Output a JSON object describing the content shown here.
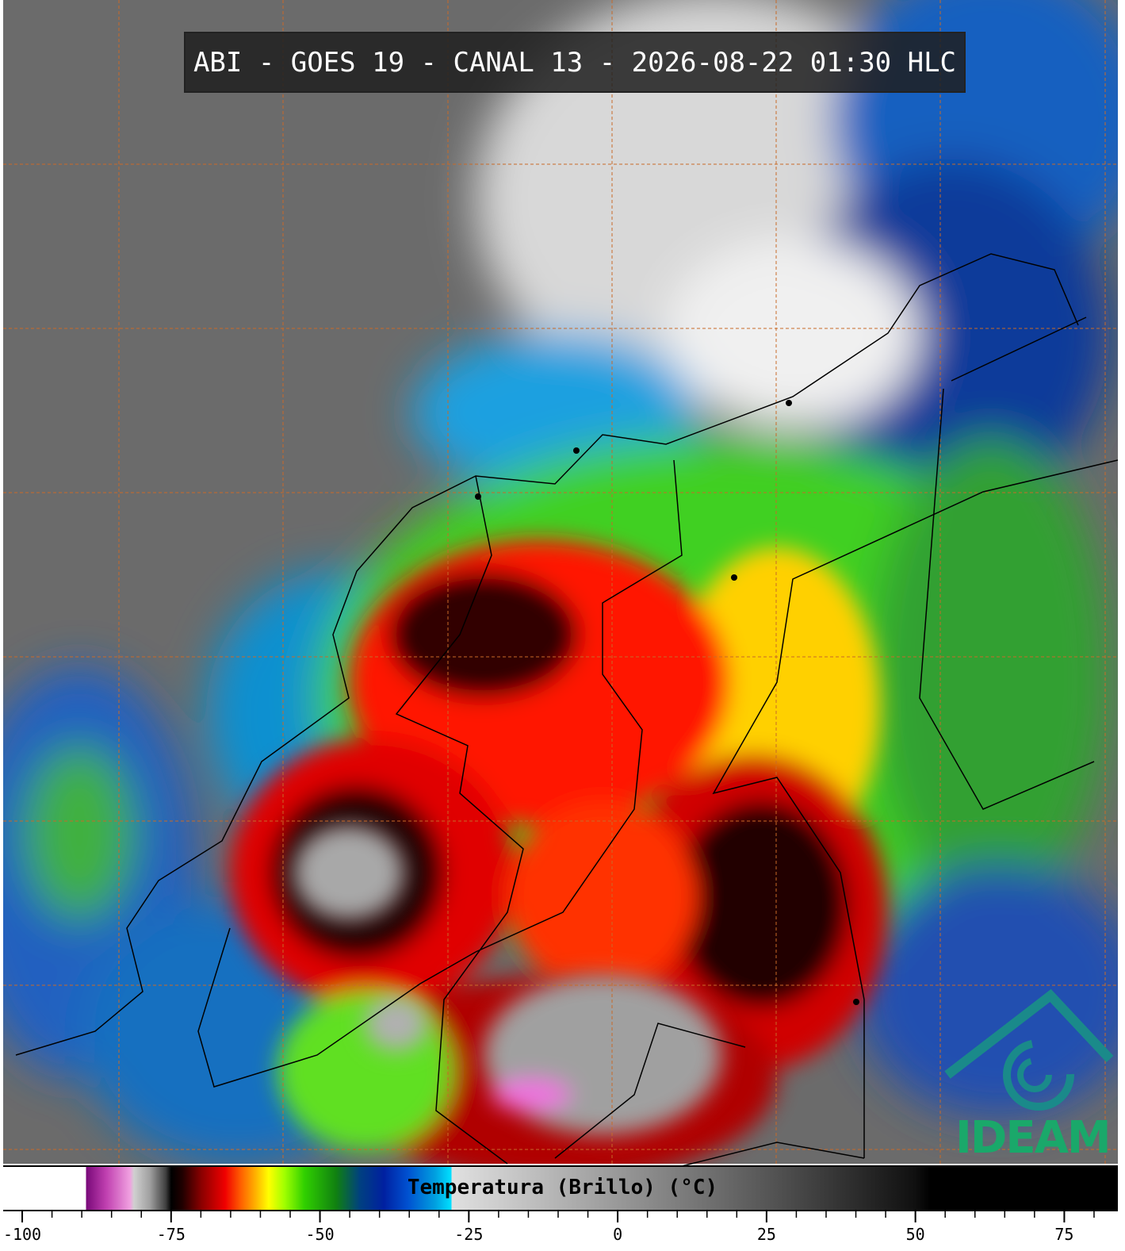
{
  "title": "ABI - GOES 19 - CANAL 13 - 2026-08-22 01:30 HLC",
  "logo": "IDEAM",
  "colorbar": {
    "label": "Temperatura (Brillo) (°C)",
    "xlim": [
      -103.2,
      84
    ],
    "xticks": [
      -100,
      -75,
      -50,
      -25,
      0,
      25,
      50,
      75
    ]
  }
}
